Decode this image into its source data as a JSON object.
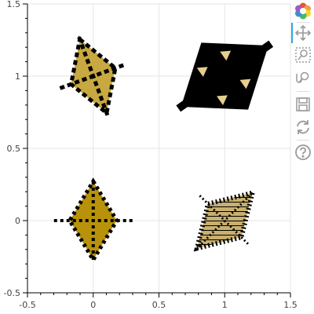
{
  "chart_data": {
    "type": "scatter",
    "title": "",
    "xlabel": "",
    "ylabel": "",
    "xlim": [
      -0.5,
      1.5
    ],
    "ylim": [
      -0.5,
      1.5
    ],
    "x_ticks": [
      -0.5,
      0,
      0.5,
      1,
      1.5
    ],
    "y_ticks": [
      -0.5,
      0,
      0.5,
      1,
      1.5
    ],
    "x_tick_labels": [
      "-0.5",
      "0",
      "0.5",
      "1",
      "1.5"
    ],
    "y_tick_labels": [
      "-0.5",
      "0",
      "0.5",
      "1",
      "1.5"
    ],
    "grid": true,
    "marker": "diamond_cross",
    "points": [
      {
        "x": 0,
        "y": 1,
        "fill": "#c8a840",
        "hatch": "dashed",
        "angle_deg": -20
      },
      {
        "x": 1,
        "y": 1,
        "fill": "#000000",
        "hatch": "triangles",
        "angle_deg": 55
      },
      {
        "x": 0,
        "y": 0,
        "fill": "#b8920a",
        "hatch": "dotted",
        "angle_deg": 0
      },
      {
        "x": 1,
        "y": 0,
        "fill": "#c8b070",
        "hatch": "hatched",
        "angle_deg": 45
      }
    ]
  },
  "toolbar": {
    "tools": [
      {
        "name": "bokeh-logo-icon",
        "icon": "bokeh-logo"
      },
      {
        "name": "pan-tool-icon",
        "icon": "pan",
        "active": true
      },
      {
        "name": "box-zoom-tool-icon",
        "icon": "box-zoom"
      },
      {
        "name": "wheel-zoom-tool-icon",
        "icon": "wheel-zoom"
      },
      {
        "name": "save-tool-icon",
        "icon": "save"
      },
      {
        "name": "reset-tool-icon",
        "icon": "reset"
      },
      {
        "name": "help-tool-icon",
        "icon": "help"
      }
    ],
    "accent": "#26aae1"
  }
}
